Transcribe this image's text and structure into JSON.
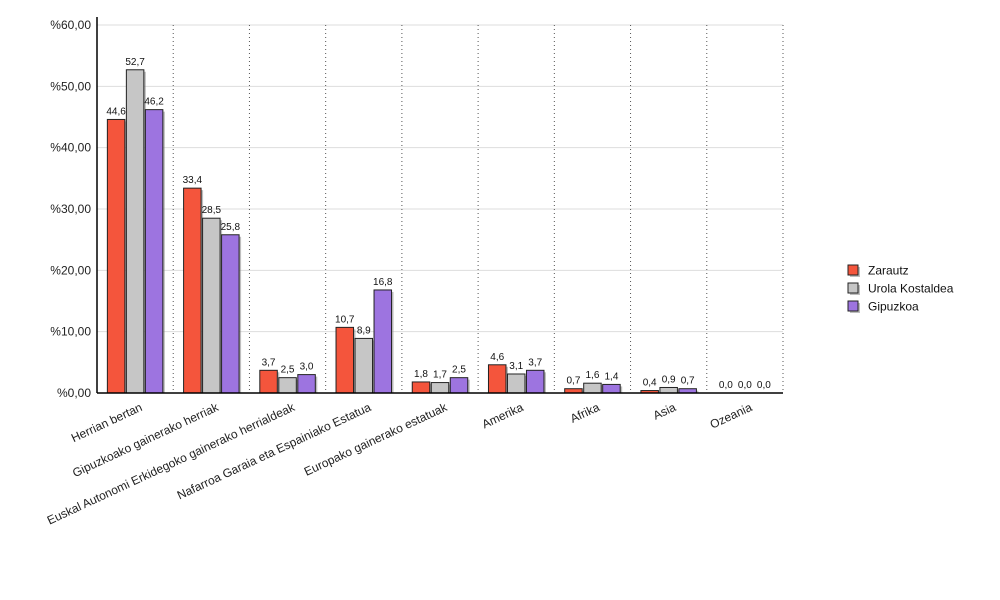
{
  "chart_data": {
    "type": "bar",
    "categories": [
      "Herrian bertan",
      "Gipuzkoako gainerako herriak",
      "Euskal Autonomi Erkidegoko gainerako herrialdeak",
      "Nafarroa Garaia eta Espainiako Estatua",
      "Europako gainerako estatuak",
      "Amerika",
      "Afrika",
      "Asia",
      "Ozeania"
    ],
    "series": [
      {
        "name": "Zarautz",
        "color": "#f4553c",
        "values": [
          44.6,
          33.4,
          3.7,
          10.7,
          1.8,
          4.6,
          0.7,
          0.4,
          0.0
        ],
        "labels": [
          "44,6",
          "33,4",
          "3,7",
          "10,7",
          "1,8",
          "4,6",
          "0,7",
          "0,4",
          "0,0"
        ]
      },
      {
        "name": "Urola Kostaldea",
        "color": "#c6c6c6",
        "values": [
          52.7,
          28.5,
          2.5,
          8.9,
          1.7,
          3.1,
          1.6,
          0.9,
          0.0
        ],
        "labels": [
          "52,7",
          "28,5",
          "2,5",
          "8,9",
          "1,7",
          "3,1",
          "1,6",
          "0,9",
          "0,0"
        ]
      },
      {
        "name": "Gipuzkoa",
        "color": "#9d74e0",
        "values": [
          46.2,
          25.8,
          3.0,
          16.8,
          2.5,
          3.7,
          1.4,
          0.7,
          0.0
        ],
        "labels": [
          "46,2",
          "25,8",
          "3,0",
          "16,8",
          "2,5",
          "3,7",
          "1,4",
          "0,7",
          "0,0"
        ]
      }
    ],
    "yticks": [
      0,
      10,
      20,
      30,
      40,
      50,
      60
    ],
    "ytick_labels": [
      "%0,00",
      "%10,00",
      "%20,00",
      "%30,00",
      "%40,00",
      "%50,00",
      "%60,00"
    ],
    "ylim": [
      0,
      60
    ],
    "title": "",
    "xlabel": "",
    "ylabel": "",
    "legend_position": "right",
    "grid": "horizontal solid, vertical dotted"
  }
}
